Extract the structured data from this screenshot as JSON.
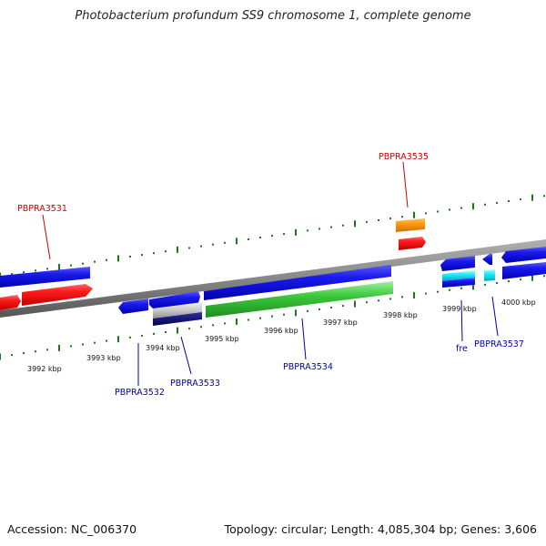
{
  "header": {
    "title": "Photobacterium profundum SS9 chromosome 1, complete genome"
  },
  "footer": {
    "accession": "Accession: NC_006370",
    "topology": "Topology: circular; Length: 4,085,304 bp; Genes: 3,606"
  },
  "colors": {
    "backbone": "#8a8a8a",
    "ticks": "#1a7a1a",
    "red_label": "#cc0000",
    "blue_label": "#0000aa"
  },
  "scale": {
    "kbp_labels": [
      "3992 kbp",
      "3993 kbp",
      "3994 kbp",
      "3995 kbp",
      "3996 kbp",
      "3997 kbp",
      "3998 kbp",
      "3999 kbp",
      "4000 kbp"
    ]
  },
  "genes": {
    "labels": [
      "PBPRA3531",
      "PBPRA3535",
      "PBPRA3532",
      "PBPRA3533",
      "PBPRA3534",
      "fre",
      "PBPRA3537"
    ]
  }
}
